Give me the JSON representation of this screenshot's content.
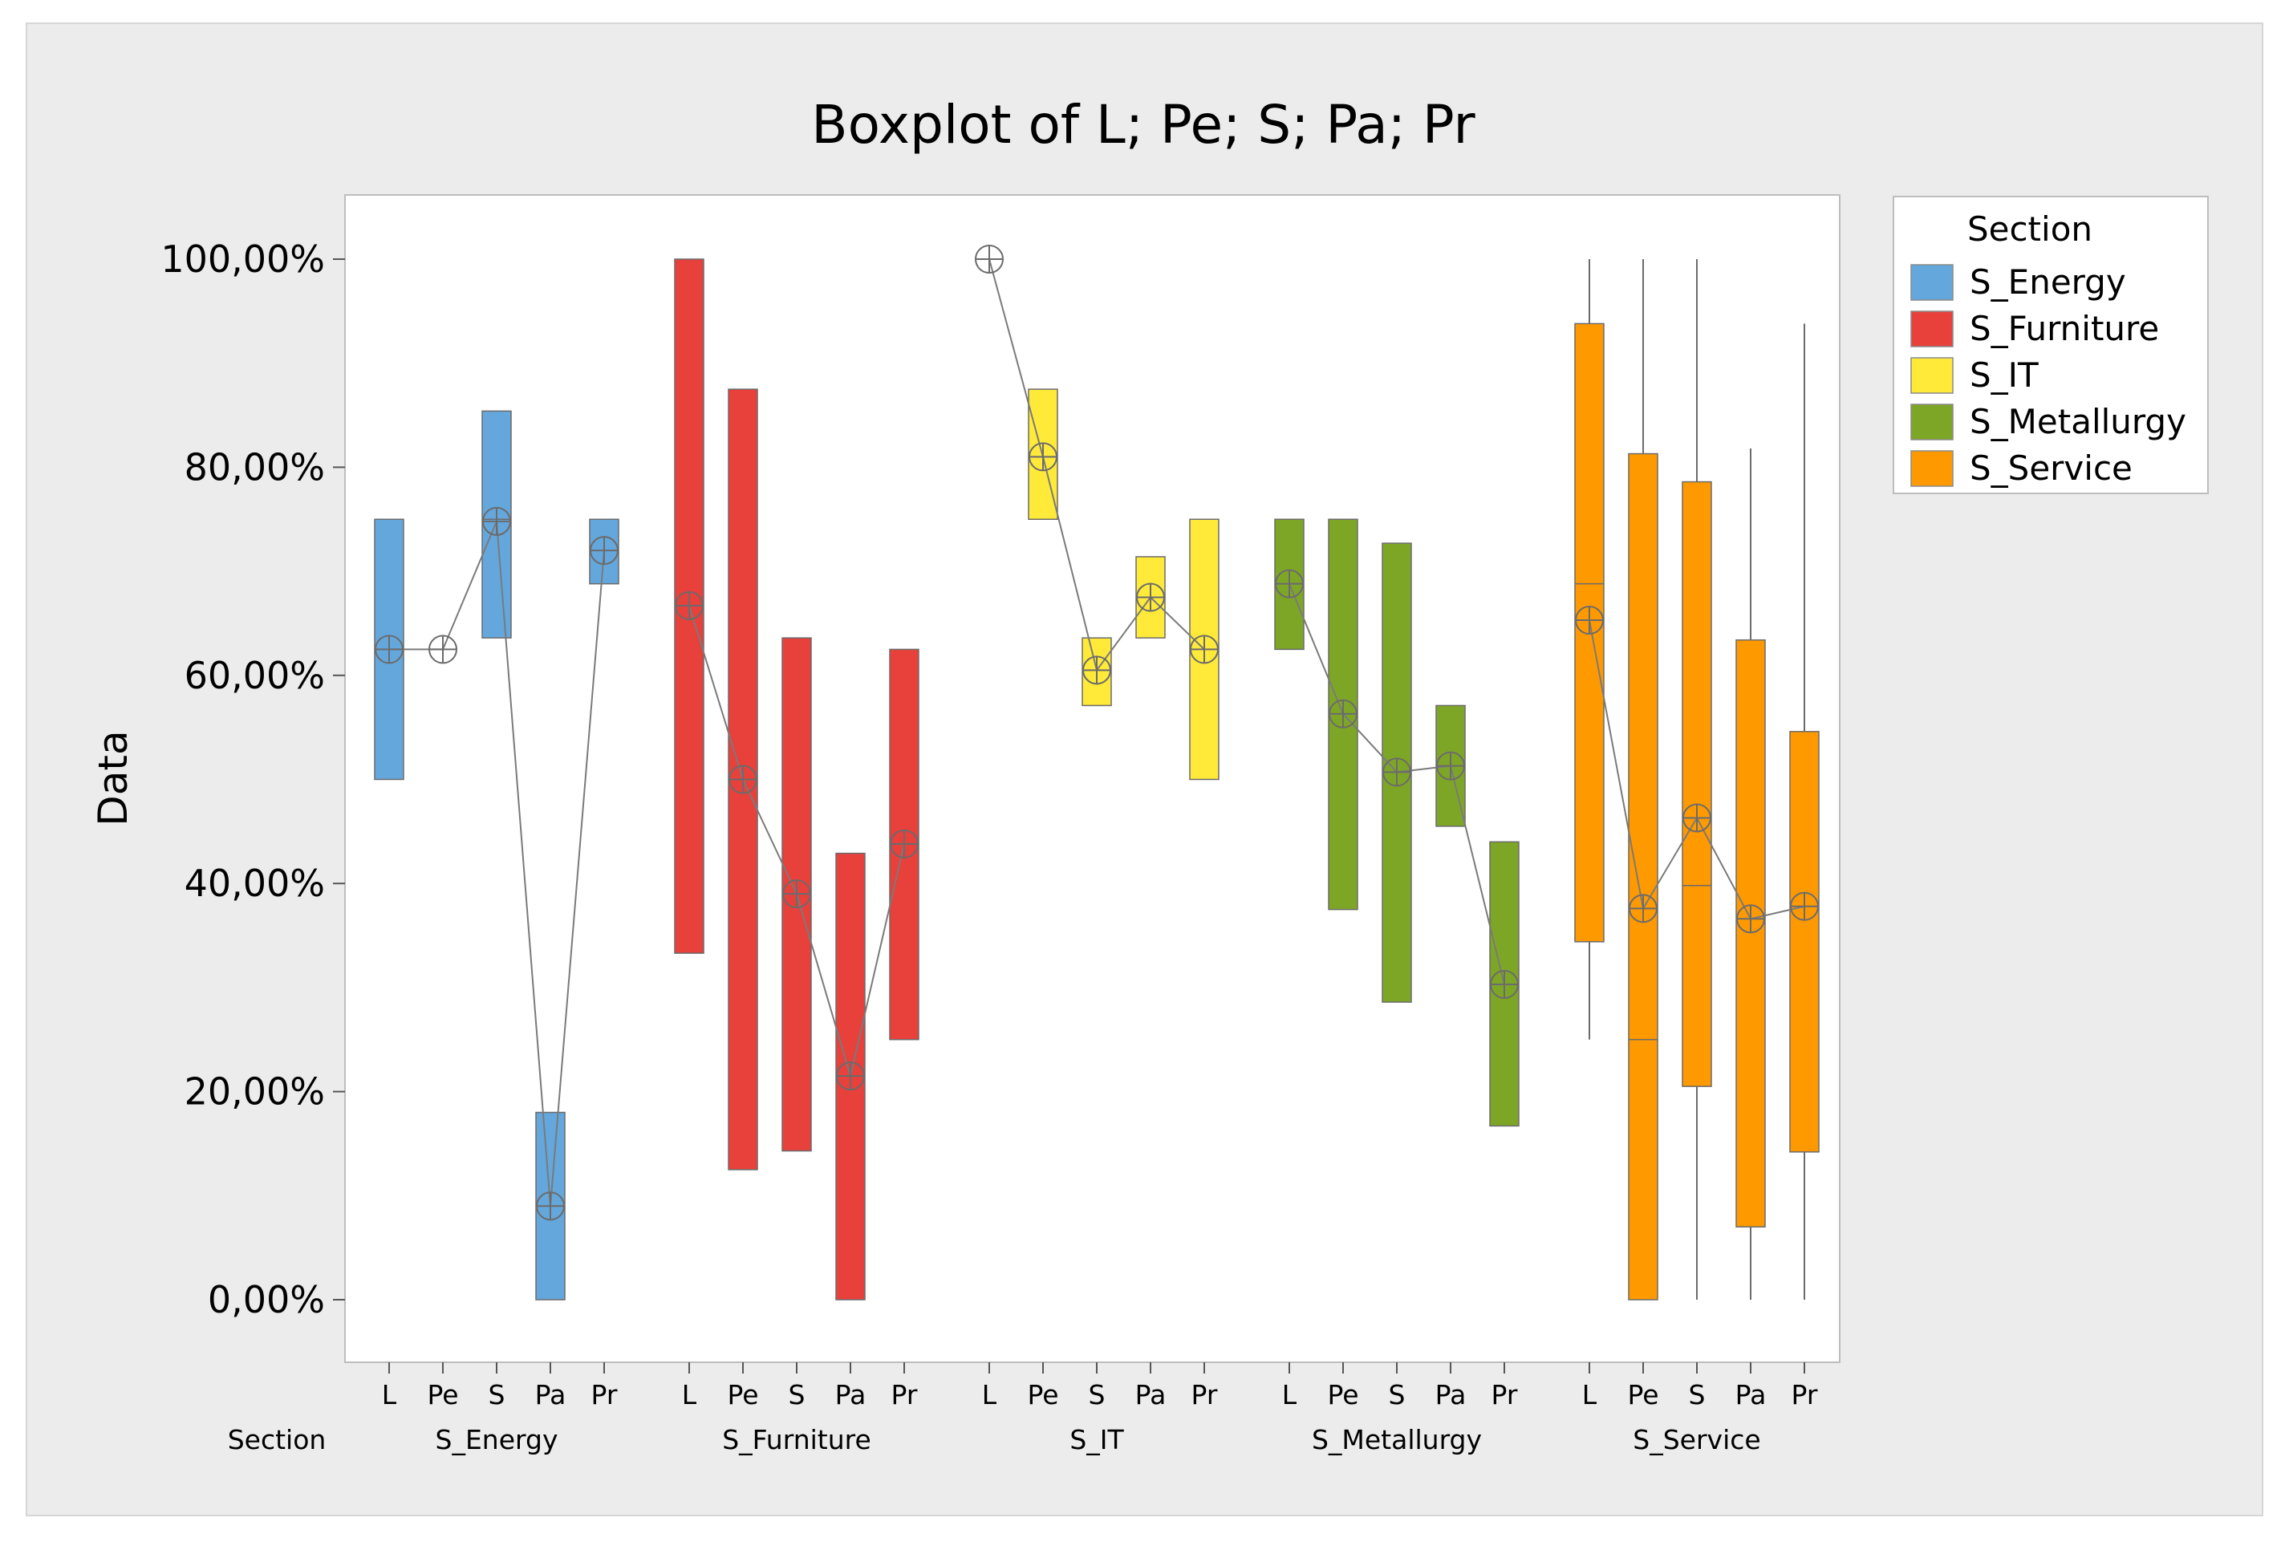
{
  "chart_data": {
    "type": "boxplot",
    "title": "Boxplot of L; Pe; S; Pa; Pr",
    "ylabel": "Data",
    "xlabel": "Section",
    "x_group_label": "Section",
    "ylim": [
      -0.06,
      1.06
    ],
    "yticks": [
      0,
      0.2,
      0.4,
      0.6,
      0.8,
      1.0
    ],
    "ytick_labels": [
      "0,00%",
      "20,00%",
      "40,00%",
      "60,00%",
      "80,00%",
      "100,00%"
    ],
    "variables": [
      "L",
      "Pe",
      "S",
      "Pa",
      "Pr"
    ],
    "legend": {
      "title": "Section",
      "position": "right"
    },
    "groups": [
      {
        "name": "S_Energy",
        "color": "#64A7DC",
        "boxes": [
          {
            "var": "L",
            "q1": 0.5,
            "median": 0.625,
            "q3": 0.75,
            "whisker_low": null,
            "whisker_high": null,
            "mean": 0.625
          },
          {
            "var": "Pe",
            "q1": 0.625,
            "median": 0.625,
            "q3": 0.625,
            "whisker_low": null,
            "whisker_high": null,
            "mean": 0.625
          },
          {
            "var": "S",
            "q1": 0.636,
            "median": 0.75,
            "q3": 0.854,
            "whisker_low": null,
            "whisker_high": null,
            "mean": 0.748
          },
          {
            "var": "Pa",
            "q1": 0.0,
            "median": 0.09,
            "q3": 0.18,
            "whisker_low": null,
            "whisker_high": null,
            "mean": 0.09
          },
          {
            "var": "Pr",
            "q1": 0.688,
            "median": 0.72,
            "q3": 0.75,
            "whisker_low": null,
            "whisker_high": null,
            "mean": 0.72
          }
        ]
      },
      {
        "name": "S_Furniture",
        "color": "#E8403B",
        "boxes": [
          {
            "var": "L",
            "q1": 0.333,
            "median": 0.667,
            "q3": 1.0,
            "whisker_low": null,
            "whisker_high": null,
            "mean": 0.667
          },
          {
            "var": "Pe",
            "q1": 0.125,
            "median": 0.5,
            "q3": 0.875,
            "whisker_low": null,
            "whisker_high": null,
            "mean": 0.5
          },
          {
            "var": "S",
            "q1": 0.143,
            "median": 0.39,
            "q3": 0.636,
            "whisker_low": null,
            "whisker_high": null,
            "mean": 0.39
          },
          {
            "var": "Pa",
            "q1": 0.0,
            "median": 0.215,
            "q3": 0.429,
            "whisker_low": null,
            "whisker_high": null,
            "mean": 0.215
          },
          {
            "var": "Pr",
            "q1": 0.25,
            "median": 0.438,
            "q3": 0.625,
            "whisker_low": null,
            "whisker_high": null,
            "mean": 0.438
          }
        ]
      },
      {
        "name": "S_IT",
        "color": "#FFE939",
        "boxes": [
          {
            "var": "L",
            "q1": 1.0,
            "median": 1.0,
            "q3": 1.0,
            "whisker_low": null,
            "whisker_high": null,
            "mean": 1.0
          },
          {
            "var": "Pe",
            "q1": 0.75,
            "median": 0.81,
            "q3": 0.875,
            "whisker_low": null,
            "whisker_high": null,
            "mean": 0.81
          },
          {
            "var": "S",
            "q1": 0.571,
            "median": 0.605,
            "q3": 0.636,
            "whisker_low": null,
            "whisker_high": null,
            "mean": 0.605
          },
          {
            "var": "Pa",
            "q1": 0.636,
            "median": 0.675,
            "q3": 0.714,
            "whisker_low": null,
            "whisker_high": null,
            "mean": 0.675
          },
          {
            "var": "Pr",
            "q1": 0.5,
            "median": 0.625,
            "q3": 0.75,
            "whisker_low": null,
            "whisker_high": null,
            "mean": 0.625
          }
        ]
      },
      {
        "name": "S_Metallurgy",
        "color": "#7EA626",
        "boxes": [
          {
            "var": "L",
            "q1": 0.625,
            "median": 0.688,
            "q3": 0.75,
            "whisker_low": null,
            "whisker_high": null,
            "mean": 0.688
          },
          {
            "var": "Pe",
            "q1": 0.375,
            "median": 0.563,
            "q3": 0.75,
            "whisker_low": null,
            "whisker_high": null,
            "mean": 0.563
          },
          {
            "var": "S",
            "q1": 0.286,
            "median": 0.507,
            "q3": 0.727,
            "whisker_low": null,
            "whisker_high": null,
            "mean": 0.507
          },
          {
            "var": "Pa",
            "q1": 0.455,
            "median": 0.513,
            "q3": 0.571,
            "whisker_low": null,
            "whisker_high": null,
            "mean": 0.513
          },
          {
            "var": "Pr",
            "q1": 0.167,
            "median": 0.303,
            "q3": 0.44,
            "whisker_low": null,
            "whisker_high": null,
            "mean": 0.303
          }
        ]
      },
      {
        "name": "S_Service",
        "color": "#FF9900",
        "boxes": [
          {
            "var": "L",
            "q1": 0.344,
            "median": 0.688,
            "q3": 0.938,
            "whisker_low": 0.25,
            "whisker_high": 1.0,
            "mean": 0.653
          },
          {
            "var": "Pe",
            "q1": 0.0,
            "median": 0.25,
            "q3": 0.813,
            "whisker_low": 0.0,
            "whisker_high": 1.0,
            "mean": 0.376
          },
          {
            "var": "S",
            "q1": 0.205,
            "median": 0.398,
            "q3": 0.786,
            "whisker_low": 0.0,
            "whisker_high": 1.0,
            "mean": 0.463
          },
          {
            "var": "Pa",
            "q1": 0.07,
            "median": 0.366,
            "q3": 0.634,
            "whisker_low": 0.0,
            "whisker_high": 0.818,
            "mean": 0.366
          },
          {
            "var": "Pr",
            "q1": 0.142,
            "median": 0.378,
            "q3": 0.546,
            "whisker_low": 0.0,
            "whisker_high": 0.938,
            "mean": 0.378
          }
        ]
      }
    ]
  }
}
